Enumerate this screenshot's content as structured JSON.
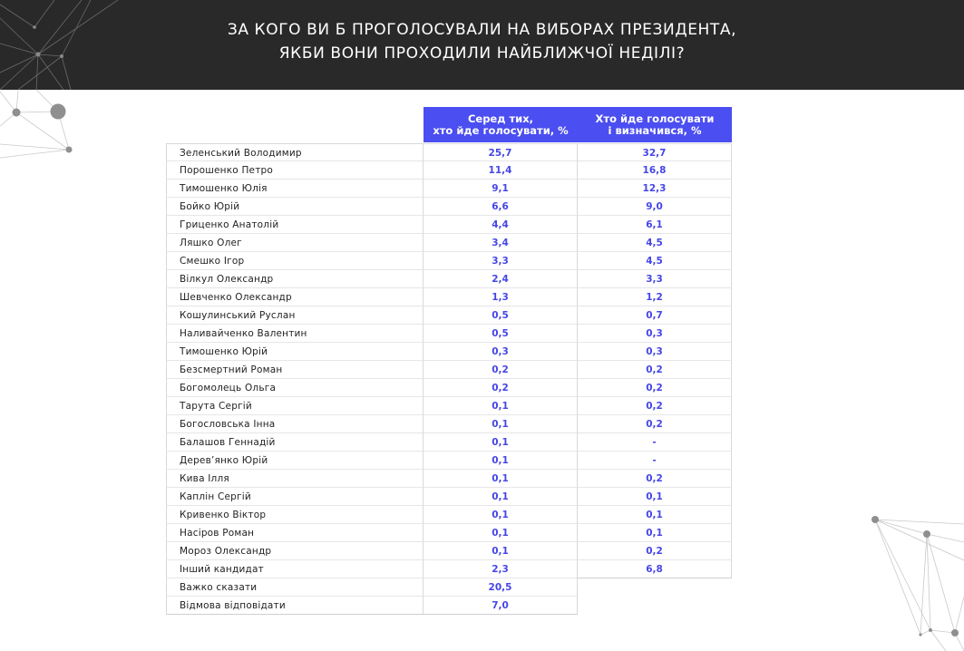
{
  "title": {
    "line1": "ЗА КОГО ВИ Б ПРОГОЛОСУВАЛИ НА ВИБОРАХ ПРЕЗИДЕНТА,",
    "line2": "ЯКБИ ВОНИ ПРОХОДИЛИ НАЙБЛИЖЧОЇ НЕДІЛІ?"
  },
  "colors": {
    "header_bg": "#292929",
    "accent": "#4b4ef0",
    "value_text": "#4546e6"
  },
  "chart_data": {
    "type": "table",
    "title": "ЗА КОГО ВИ Б ПРОГОЛОСУВАЛИ НА ВИБОРАХ ПРЕЗИДЕНТА, ЯКБИ ВОНИ ПРОХОДИЛИ НАЙБЛИЖЧОЇ НЕДІЛІ?",
    "columns": [
      {
        "line1": "Серед тих,",
        "line2": "хто йде голосувати, %"
      },
      {
        "line1": "Хто йде голосувати",
        "line2": "і визначився, %"
      }
    ],
    "rows": [
      {
        "name": "Зеленський Володимир",
        "v1": "25,7",
        "v2": "32,7"
      },
      {
        "name": "Порошенко Петро",
        "v1": "11,4",
        "v2": "16,8"
      },
      {
        "name": "Тимошенко Юлія",
        "v1": "9,1",
        "v2": "12,3"
      },
      {
        "name": "Бойко Юрій",
        "v1": "6,6",
        "v2": "9,0"
      },
      {
        "name": "Гриценко Анатолій",
        "v1": "4,4",
        "v2": "6,1"
      },
      {
        "name": "Ляшко Олег",
        "v1": "3,4",
        "v2": "4,5"
      },
      {
        "name": "Смешко Ігор",
        "v1": "3,3",
        "v2": "4,5"
      },
      {
        "name": "Вілкул Олександр",
        "v1": "2,4",
        "v2": "3,3"
      },
      {
        "name": "Шевченко Олександр",
        "v1": "1,3",
        "v2": "1,2"
      },
      {
        "name": "Кошулинський Руслан",
        "v1": "0,5",
        "v2": "0,7"
      },
      {
        "name": "Наливайченко Валентин",
        "v1": "0,5",
        "v2": "0,3"
      },
      {
        "name": "Тимошенко Юрій",
        "v1": "0,3",
        "v2": "0,3"
      },
      {
        "name": "Безсмертний Роман",
        "v1": "0,2",
        "v2": "0,2"
      },
      {
        "name": "Богомолець Ольга",
        "v1": "0,2",
        "v2": "0,2"
      },
      {
        "name": "Тарута Сергій",
        "v1": "0,1",
        "v2": "0,2"
      },
      {
        "name": "Богословська Інна",
        "v1": "0,1",
        "v2": "0,2"
      },
      {
        "name": "Балашов Геннадій",
        "v1": "0,1",
        "v2": "-"
      },
      {
        "name": "Дерев’янко Юрій",
        "v1": "0,1",
        "v2": "-"
      },
      {
        "name": "Кива Ілля",
        "v1": "0,1",
        "v2": "0,2"
      },
      {
        "name": "Каплін Сергій",
        "v1": "0,1",
        "v2": "0,1"
      },
      {
        "name": "Кривенко Віктор",
        "v1": "0,1",
        "v2": "0,1"
      },
      {
        "name": "Насіров Роман",
        "v1": "0,1",
        "v2": "0,1"
      },
      {
        "name": "Мороз Олександр",
        "v1": "0,1",
        "v2": "0,2"
      },
      {
        "name": "Інший кандидат",
        "v1": "2,3",
        "v2": "6,8"
      },
      {
        "name": "Важко сказати",
        "v1": "20,5",
        "v2": null
      },
      {
        "name": "Відмова відповідати",
        "v1": "7,0",
        "v2": null
      }
    ]
  }
}
